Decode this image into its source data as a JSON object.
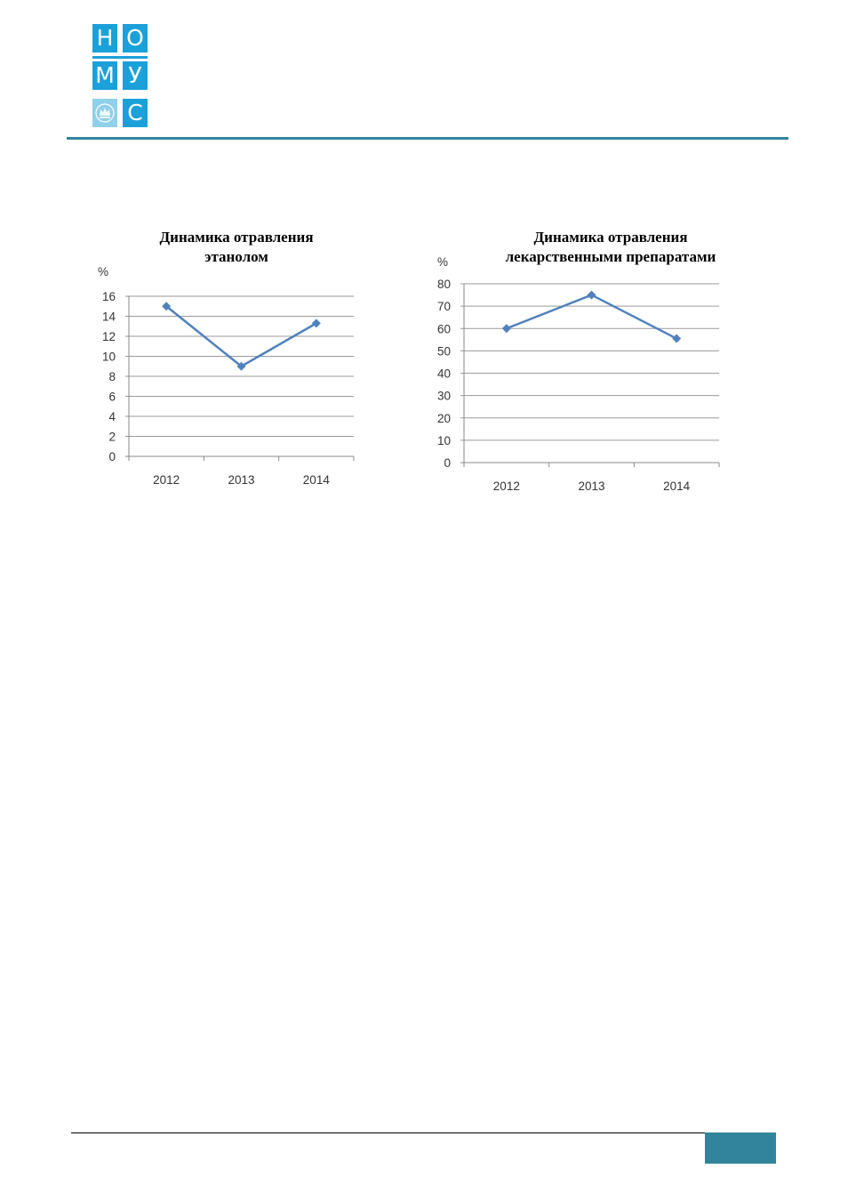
{
  "header": {
    "logo": {
      "letters": [
        "Н",
        "О",
        "М",
        "У",
        "С"
      ],
      "color": "#1ba1da",
      "crest_color": "#8fd0ea"
    },
    "rule_color": "#31849b"
  },
  "chart_data": [
    {
      "type": "line",
      "title_lines": [
        "Динамика отравления",
        "этанолом"
      ],
      "ylabel": "%",
      "categories": [
        "2012",
        "2013",
        "2014"
      ],
      "values": [
        15,
        9,
        13.3
      ],
      "ylim": [
        0,
        16
      ],
      "yticks": [
        "0",
        "2",
        "4",
        "6",
        "8",
        "10",
        "12",
        "14",
        "16"
      ],
      "grid": true,
      "marker": "diamond",
      "color": "#4f81bd"
    },
    {
      "type": "line",
      "title_lines": [
        "Динамика отравления",
        "лекарственными препаратами"
      ],
      "ylabel": "%",
      "categories": [
        "2012",
        "2013",
        "2014"
      ],
      "values": [
        60,
        75,
        55.5
      ],
      "ylim": [
        0,
        80
      ],
      "yticks": [
        "0",
        "10",
        "20",
        "30",
        "40",
        "50",
        "60",
        "70",
        "80"
      ],
      "grid": true,
      "marker": "diamond",
      "color": "#4f81bd"
    }
  ],
  "footer": {
    "block_color": "#31849b"
  }
}
